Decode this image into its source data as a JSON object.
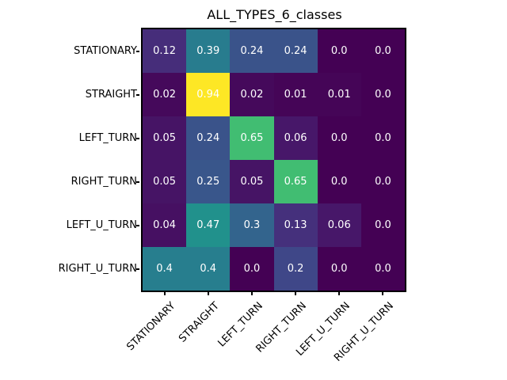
{
  "chart_data": {
    "type": "heatmap",
    "title": "ALL_TYPES_6_classes",
    "row_labels": [
      "STATIONARY",
      "STRAIGHT",
      "LEFT_TURN",
      "RIGHT_TURN",
      "LEFT_U_TURN",
      "RIGHT_U_TURN"
    ],
    "col_labels": [
      "STATIONARY",
      "STRAIGHT",
      "LEFT_TURN",
      "RIGHT_TURN",
      "LEFT_U_TURN",
      "RIGHT_U_TURN"
    ],
    "matrix": [
      [
        0.12,
        0.39,
        0.24,
        0.24,
        0.0,
        0.0
      ],
      [
        0.02,
        0.94,
        0.02,
        0.01,
        0.01,
        0.0
      ],
      [
        0.05,
        0.24,
        0.65,
        0.06,
        0.0,
        0.0
      ],
      [
        0.05,
        0.25,
        0.05,
        0.65,
        0.0,
        0.0
      ],
      [
        0.04,
        0.47,
        0.3,
        0.13,
        0.06,
        0.0
      ],
      [
        0.4,
        0.4,
        0.0,
        0.2,
        0.0,
        0.0
      ]
    ],
    "colormap": "viridis",
    "value_text_color": "#ffffff",
    "axis_border_color": "#000000",
    "x_tick_rotation": 45,
    "legend": "none",
    "grid": "off"
  }
}
